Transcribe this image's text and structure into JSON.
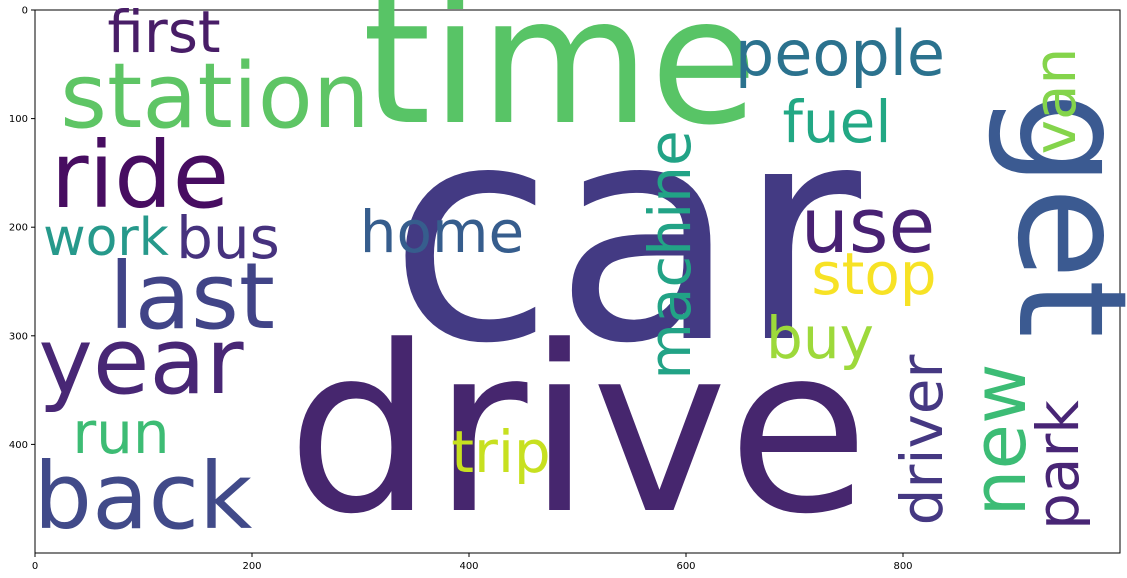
{
  "axes": {
    "x_ticks": [
      {
        "value": 0,
        "label": "0"
      },
      {
        "value": 200,
        "label": "200"
      },
      {
        "value": 400,
        "label": "400"
      },
      {
        "value": 600,
        "label": "600"
      },
      {
        "value": 800,
        "label": "800"
      }
    ],
    "y_ticks": [
      {
        "value": 0,
        "label": "0"
      },
      {
        "value": 100,
        "label": "100"
      },
      {
        "value": 200,
        "label": "200"
      },
      {
        "value": 300,
        "label": "300"
      },
      {
        "value": 400,
        "label": "400"
      }
    ],
    "x_range": [
      0,
      1000
    ],
    "y_range": [
      500,
      0
    ]
  },
  "words": [
    {
      "text": "car",
      "color": "#433a83"
    },
    {
      "text": "drive",
      "color": "#46266e"
    },
    {
      "text": "time",
      "color": "#58c466"
    },
    {
      "text": "get",
      "color": "#3b5a91"
    },
    {
      "text": "station",
      "color": "#5ec565"
    },
    {
      "text": "ride",
      "color": "#470d61"
    },
    {
      "text": "year",
      "color": "#482775"
    },
    {
      "text": "last",
      "color": "#414487"
    },
    {
      "text": "back",
      "color": "#414a89"
    },
    {
      "text": "people",
      "color": "#2b728e"
    },
    {
      "text": "first",
      "color": "#481d67"
    },
    {
      "text": "use",
      "color": "#482173"
    },
    {
      "text": "home",
      "color": "#365d8d"
    },
    {
      "text": "fuel",
      "color": "#22a884"
    },
    {
      "text": "van",
      "color": "#84d44b"
    },
    {
      "text": "machine",
      "color": "#22a386"
    },
    {
      "text": "new",
      "color": "#3cbc75"
    },
    {
      "text": "stop",
      "color": "#f7e225"
    },
    {
      "text": "buy",
      "color": "#9dd93b"
    },
    {
      "text": "work",
      "color": "#26998b"
    },
    {
      "text": "bus",
      "color": "#46327e"
    },
    {
      "text": "driver",
      "color": "#453882"
    },
    {
      "text": "park",
      "color": "#482575"
    },
    {
      "text": "run",
      "color": "#3dbc74"
    },
    {
      "text": "trip",
      "color": "#c7e020"
    }
  ]
}
